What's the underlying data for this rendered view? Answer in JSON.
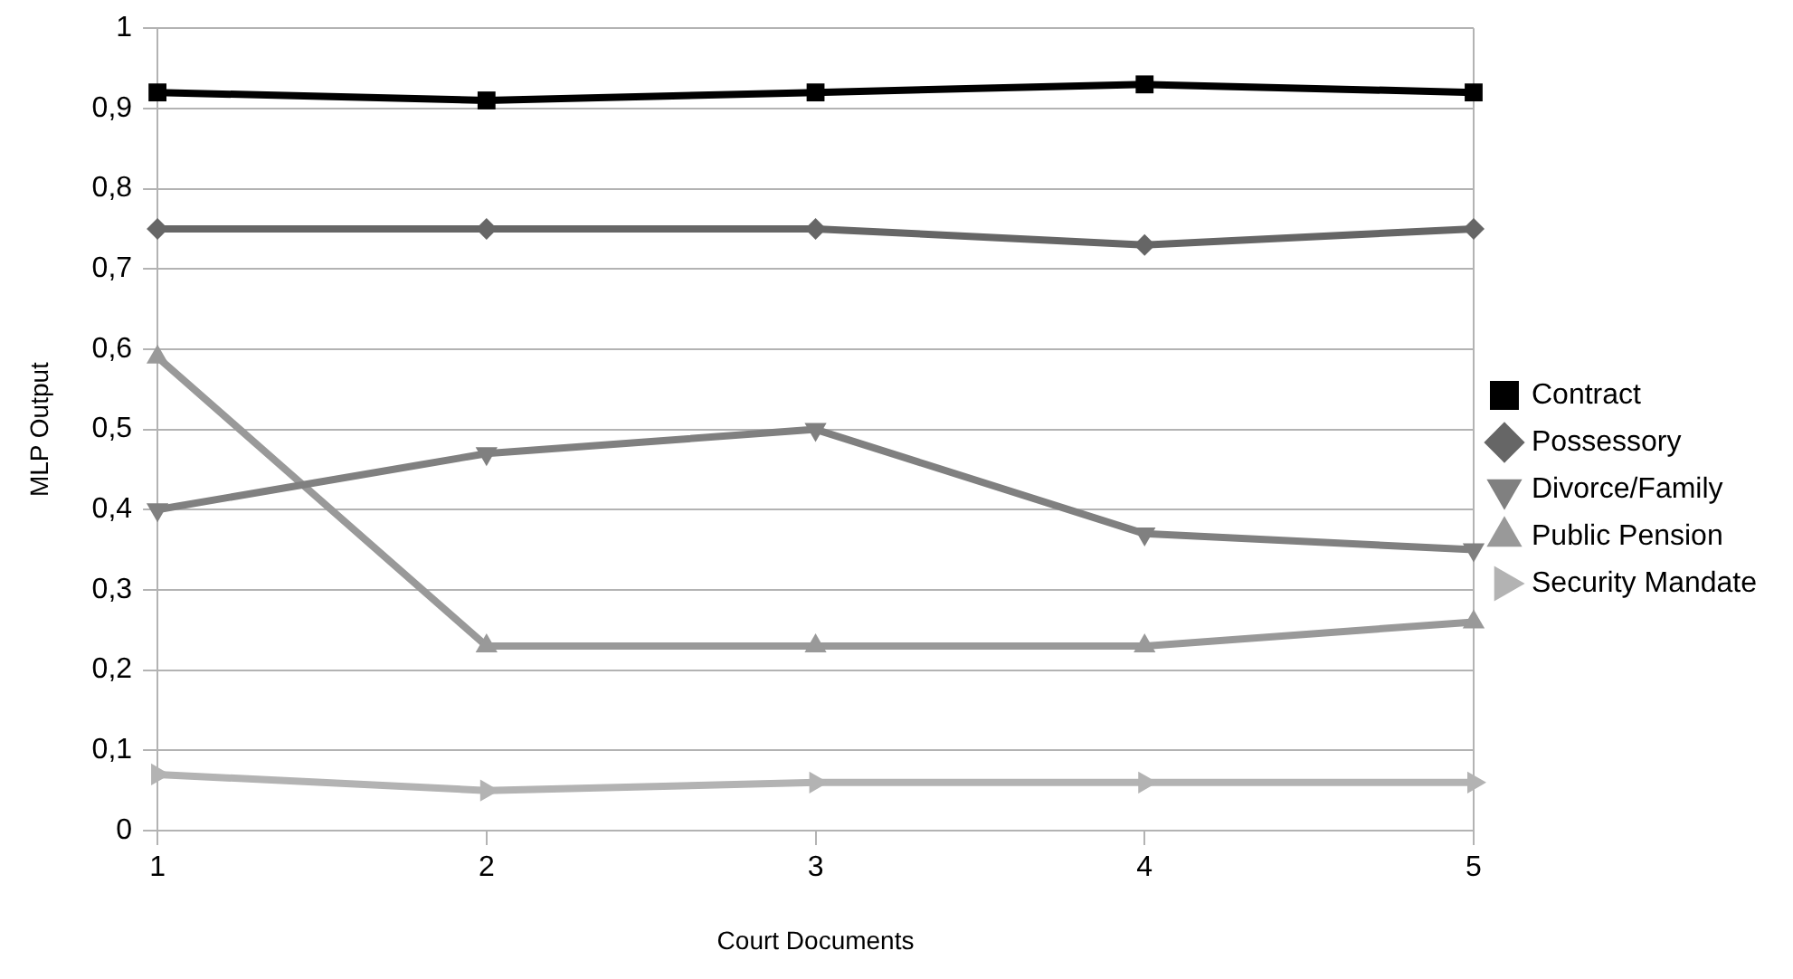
{
  "chart_data": {
    "type": "line",
    "xlabel": "Court Documents",
    "ylabel": "MLP Output",
    "x": [
      1,
      2,
      3,
      4,
      5
    ],
    "xlim": [
      1,
      5
    ],
    "xticks": [
      1,
      2,
      3,
      4,
      5
    ],
    "ylim": [
      0,
      1
    ],
    "yticks": [
      0,
      {
        "value": 0.1,
        "label": "0,1"
      },
      {
        "value": 0.2,
        "label": "0,2"
      },
      {
        "value": 0.3,
        "label": "0,3"
      },
      {
        "value": 0.4,
        "label": "0,4"
      },
      {
        "value": 0.5,
        "label": "0,5"
      },
      {
        "value": 0.6,
        "label": "0,6"
      },
      {
        "value": 0.7,
        "label": "0,7"
      },
      {
        "value": 0.8,
        "label": "0,8"
      },
      {
        "value": 0.9,
        "label": "0,9"
      },
      1
    ],
    "grid": "y",
    "legend": "right",
    "line_style": "solid",
    "series": [
      {
        "name": "Contract",
        "color": "#000000",
        "marker": "square",
        "values": [
          0.92,
          0.91,
          0.92,
          0.93,
          0.92
        ]
      },
      {
        "name": "Possessory",
        "color": "#666666",
        "marker": "diamond",
        "values": [
          0.75,
          0.75,
          0.75,
          0.73,
          0.75
        ]
      },
      {
        "name": "Divorce/Family",
        "color": "#808080",
        "marker": "triangle-down",
        "values": [
          0.4,
          0.47,
          0.5,
          0.37,
          0.35
        ]
      },
      {
        "name": "Public Pension",
        "color": "#999999",
        "marker": "triangle",
        "values": [
          0.59,
          0.23,
          0.23,
          0.23,
          0.26
        ]
      },
      {
        "name": "Security Mandate",
        "color": "#b3b3b3",
        "marker": "triangle-right",
        "values": [
          0.07,
          0.05,
          0.06,
          0.06,
          0.06
        ]
      }
    ]
  }
}
